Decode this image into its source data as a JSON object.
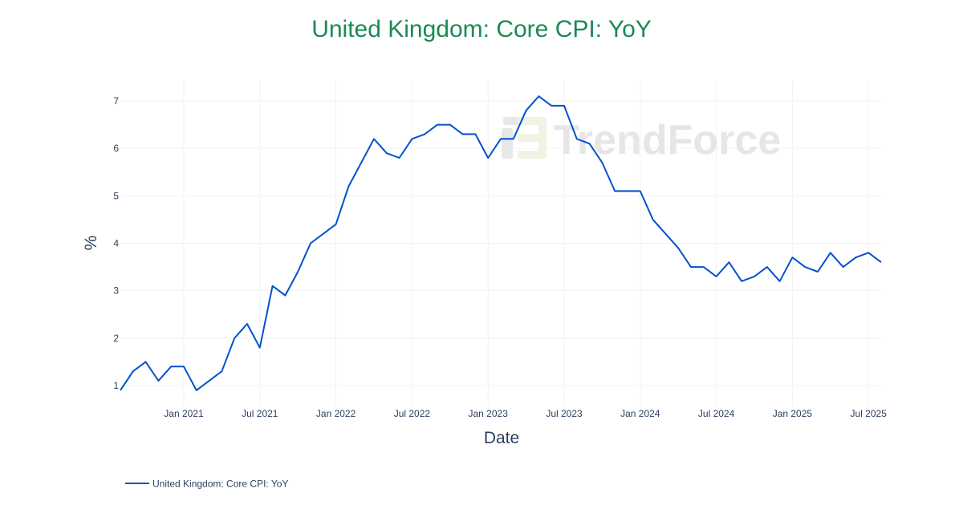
{
  "title": "United Kingdom: Core CPI: YoY",
  "watermark": "TrendForce",
  "legend": {
    "label": "United Kingdom: Core CPI: YoY",
    "color": "#0052cc"
  },
  "colors": {
    "title": "#1b8a55",
    "line": "#0052cc",
    "grid": "#f2f2f2",
    "text": "#2a3f5f"
  },
  "chart_data": {
    "type": "line",
    "title": "United Kingdom: Core CPI: YoY",
    "xlabel": "Date",
    "ylabel": "%",
    "ylim": [
      0.6,
      7.4
    ],
    "grid": true,
    "legend_position": "bottom-left",
    "x_tick_labels": [
      "Jan 2021",
      "Jul 2021",
      "Jan 2022",
      "Jul 2022",
      "Jan 2023",
      "Jul 2023",
      "Jan 2024",
      "Jul 2024",
      "Jan 2025",
      "Jul 2025"
    ],
    "y_tick_labels": [
      "1",
      "2",
      "3",
      "4",
      "5",
      "6",
      "7"
    ],
    "x": [
      "2020-08",
      "2020-09",
      "2020-10",
      "2020-11",
      "2020-12",
      "2021-01",
      "2021-02",
      "2021-03",
      "2021-04",
      "2021-05",
      "2021-06",
      "2021-07",
      "2021-08",
      "2021-09",
      "2021-10",
      "2021-11",
      "2021-12",
      "2022-01",
      "2022-02",
      "2022-03",
      "2022-04",
      "2022-05",
      "2022-06",
      "2022-07",
      "2022-08",
      "2022-09",
      "2022-10",
      "2022-11",
      "2022-12",
      "2023-01",
      "2023-02",
      "2023-03",
      "2023-04",
      "2023-05",
      "2023-06",
      "2023-07",
      "2023-08",
      "2023-09",
      "2023-10",
      "2023-11",
      "2023-12",
      "2024-01",
      "2024-02",
      "2024-03",
      "2024-04",
      "2024-05",
      "2024-06",
      "2024-07",
      "2024-08",
      "2024-09",
      "2024-10",
      "2024-11",
      "2024-12",
      "2025-01",
      "2025-02",
      "2025-03",
      "2025-04",
      "2025-05",
      "2025-06",
      "2025-07",
      "2025-08"
    ],
    "series": [
      {
        "name": "United Kingdom: Core CPI: YoY",
        "values": [
          0.9,
          1.3,
          1.5,
          1.1,
          1.4,
          1.4,
          0.9,
          1.1,
          1.3,
          2.0,
          2.3,
          1.8,
          3.1,
          2.9,
          3.4,
          4.0,
          4.2,
          4.4,
          5.2,
          5.7,
          6.2,
          5.9,
          5.8,
          6.2,
          6.3,
          6.5,
          6.5,
          6.3,
          6.3,
          5.8,
          6.2,
          6.2,
          6.8,
          7.1,
          6.9,
          6.9,
          6.2,
          6.1,
          5.7,
          5.1,
          5.1,
          5.1,
          4.5,
          4.2,
          3.9,
          3.5,
          3.5,
          3.3,
          3.6,
          3.2,
          3.3,
          3.5,
          3.2,
          3.7,
          3.5,
          3.4,
          3.8,
          3.5,
          3.7,
          3.8,
          3.6
        ]
      }
    ]
  }
}
